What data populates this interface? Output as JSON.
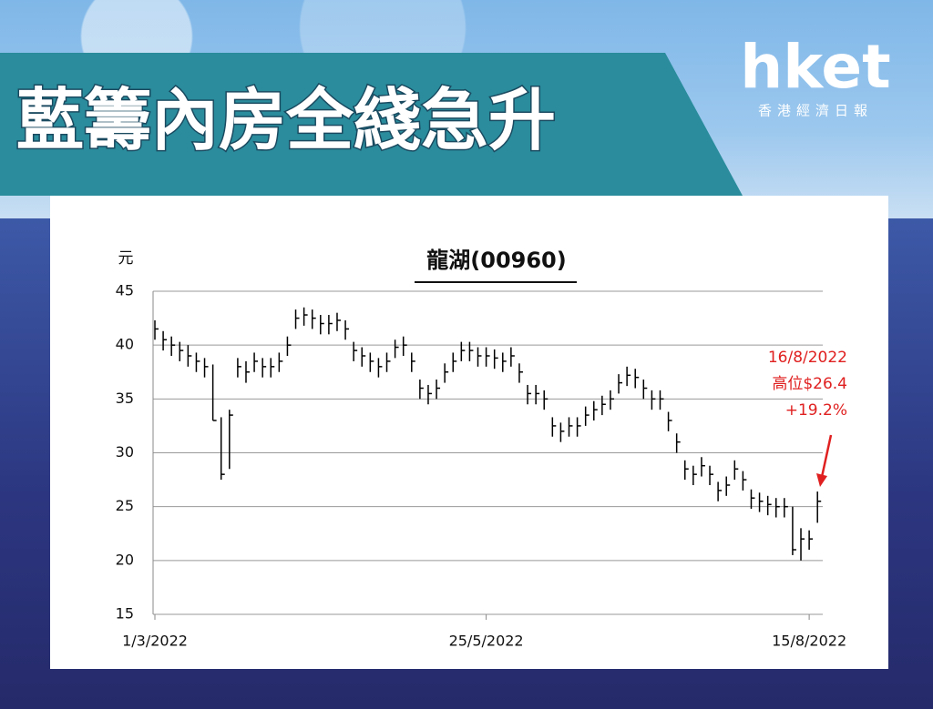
{
  "banner": {
    "title": "藍籌內房全綫急升",
    "logo": "hket",
    "logo_sub": "香港經濟日報"
  },
  "chart_data": {
    "type": "ohlc",
    "title": "龍湖(00960)",
    "y_label": "元",
    "categories": [
      "1/3/2022",
      null,
      null,
      null,
      null,
      null,
      null,
      null,
      null,
      null,
      null,
      null,
      null,
      null,
      null,
      null,
      null,
      null,
      null,
      null,
      null,
      null,
      null,
      null,
      null,
      null,
      null,
      null,
      null,
      null,
      null,
      null,
      null,
      null,
      null,
      null,
      null,
      null,
      null,
      null,
      "25/5/2022",
      null,
      null,
      null,
      null,
      null,
      null,
      null,
      null,
      null,
      null,
      null,
      null,
      null,
      null,
      null,
      null,
      null,
      null,
      null,
      null,
      null,
      null,
      null,
      null,
      null,
      null,
      null,
      null,
      null,
      null,
      null,
      null,
      null,
      null,
      null,
      null,
      null,
      null,
      "15/8/2022",
      null
    ],
    "high": [
      42.3,
      41.3,
      40.8,
      40.3,
      40,
      39.3,
      38.8,
      38.2,
      33.3,
      34,
      38.8,
      38.5,
      39.3,
      38.8,
      38.8,
      39.3,
      40.8,
      43.3,
      43.5,
      43.3,
      42.8,
      42.8,
      43,
      42.3,
      40.3,
      39.8,
      39.3,
      38.8,
      39.3,
      40.5,
      40.8,
      39.3,
      36.8,
      36.3,
      36.8,
      38.3,
      39.3,
      40.3,
      40.3,
      39.8,
      39.8,
      39.6,
      39.3,
      39.8,
      38.3,
      36.3,
      36.3,
      35.8,
      33.3,
      32.8,
      33.3,
      33.3,
      34.3,
      34.8,
      35.3,
      35.8,
      37.3,
      38,
      37.8,
      36.8,
      35.8,
      35.8,
      33.8,
      31.8,
      29.3,
      28.8,
      29.6,
      28.8,
      27.3,
      27.8,
      29.3,
      28.3,
      26.6,
      26.3,
      26,
      25.8,
      25.8,
      25,
      23,
      22.8,
      26.4
    ],
    "low": [
      40.5,
      39.5,
      39,
      38.5,
      38,
      37.5,
      37,
      33,
      27.5,
      28.5,
      37,
      36.5,
      37.5,
      37,
      37,
      37.5,
      39,
      41.5,
      41.8,
      41.5,
      41,
      41,
      41.3,
      40.5,
      38.5,
      38,
      37.5,
      37,
      37.5,
      38.8,
      39,
      37.5,
      35,
      34.5,
      35,
      36.5,
      37.5,
      38.5,
      38.5,
      38,
      38,
      37.8,
      37.5,
      38,
      36.5,
      34.5,
      34.5,
      34,
      31.5,
      31,
      31.5,
      31.5,
      32.5,
      33,
      33.5,
      34,
      35.5,
      36.2,
      36,
      35,
      34,
      34,
      32,
      30,
      27.5,
      27,
      27.8,
      27,
      25.5,
      26,
      27.5,
      26.5,
      24.8,
      24.5,
      24.2,
      24,
      24,
      20.5,
      20,
      21,
      23.5
    ],
    "close": [
      41.5,
      40.5,
      40,
      39.5,
      39,
      38.5,
      38,
      33,
      28,
      33.5,
      38,
      37.5,
      38.5,
      38,
      38,
      38.5,
      40,
      42.5,
      42.8,
      42.5,
      42,
      42,
      42.3,
      41.5,
      39.5,
      39,
      38.5,
      38,
      38.5,
      39.8,
      40,
      38.5,
      36,
      35.5,
      36,
      37.5,
      38.5,
      39.5,
      39.5,
      39,
      39,
      38.8,
      38.5,
      39,
      37.5,
      35.5,
      35.5,
      35,
      32.5,
      32,
      32.5,
      32.5,
      33.5,
      34,
      34.5,
      35,
      36.5,
      37.2,
      37,
      36,
      35,
      35,
      33,
      31,
      28.5,
      28,
      28.8,
      28,
      26.5,
      27,
      28.5,
      27.5,
      25.8,
      25.5,
      25.2,
      25,
      25,
      21,
      22,
      22,
      25.5
    ],
    "color": "#000000",
    "ylim": [
      15,
      45
    ],
    "yticks": [
      15,
      20,
      25,
      30,
      35,
      40,
      45
    ],
    "grid": true,
    "annotation": {
      "lines": [
        "16/8/2022",
        "高位$26.4",
        "+19.2%"
      ],
      "color": "#e02020"
    }
  }
}
